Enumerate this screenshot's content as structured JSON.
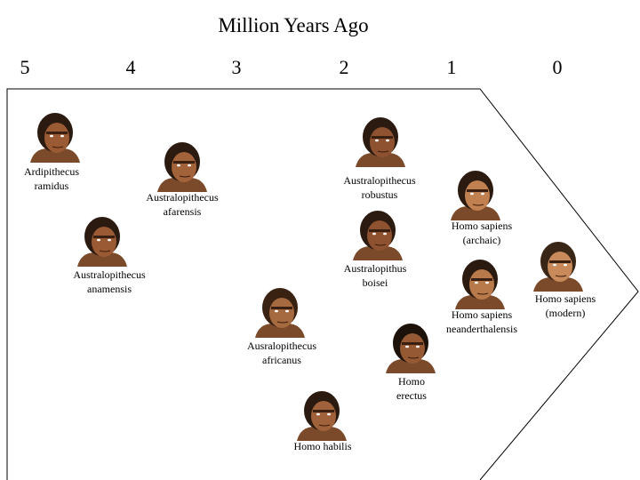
{
  "header": {
    "title": "Million Years Ago"
  },
  "scale": [
    "5",
    "4",
    "3",
    "2",
    "1",
    "0"
  ],
  "nodes": [
    {
      "lines": [
        "Ardipithecus",
        "ramidus"
      ]
    },
    {
      "lines": [
        "Australopithecus",
        "afarensis"
      ]
    },
    {
      "lines": [
        "Australopithecus",
        "anamensis"
      ]
    },
    {
      "lines": [
        "Australopithecus",
        "robustus"
      ]
    },
    {
      "lines": [
        "Australopithus",
        "boisei"
      ]
    },
    {
      "lines": [
        "Ausralopithecus",
        "africanus"
      ]
    },
    {
      "lines": [
        "Homo habilis"
      ]
    },
    {
      "lines": [
        "Homo",
        "erectus"
      ]
    },
    {
      "lines": [
        "Homo sapiens",
        "(archaic)"
      ]
    },
    {
      "lines": [
        "Homo sapiens",
        "neanderthalensis"
      ]
    },
    {
      "lines": [
        "Homo sapiens",
        "(modern)"
      ]
    }
  ]
}
